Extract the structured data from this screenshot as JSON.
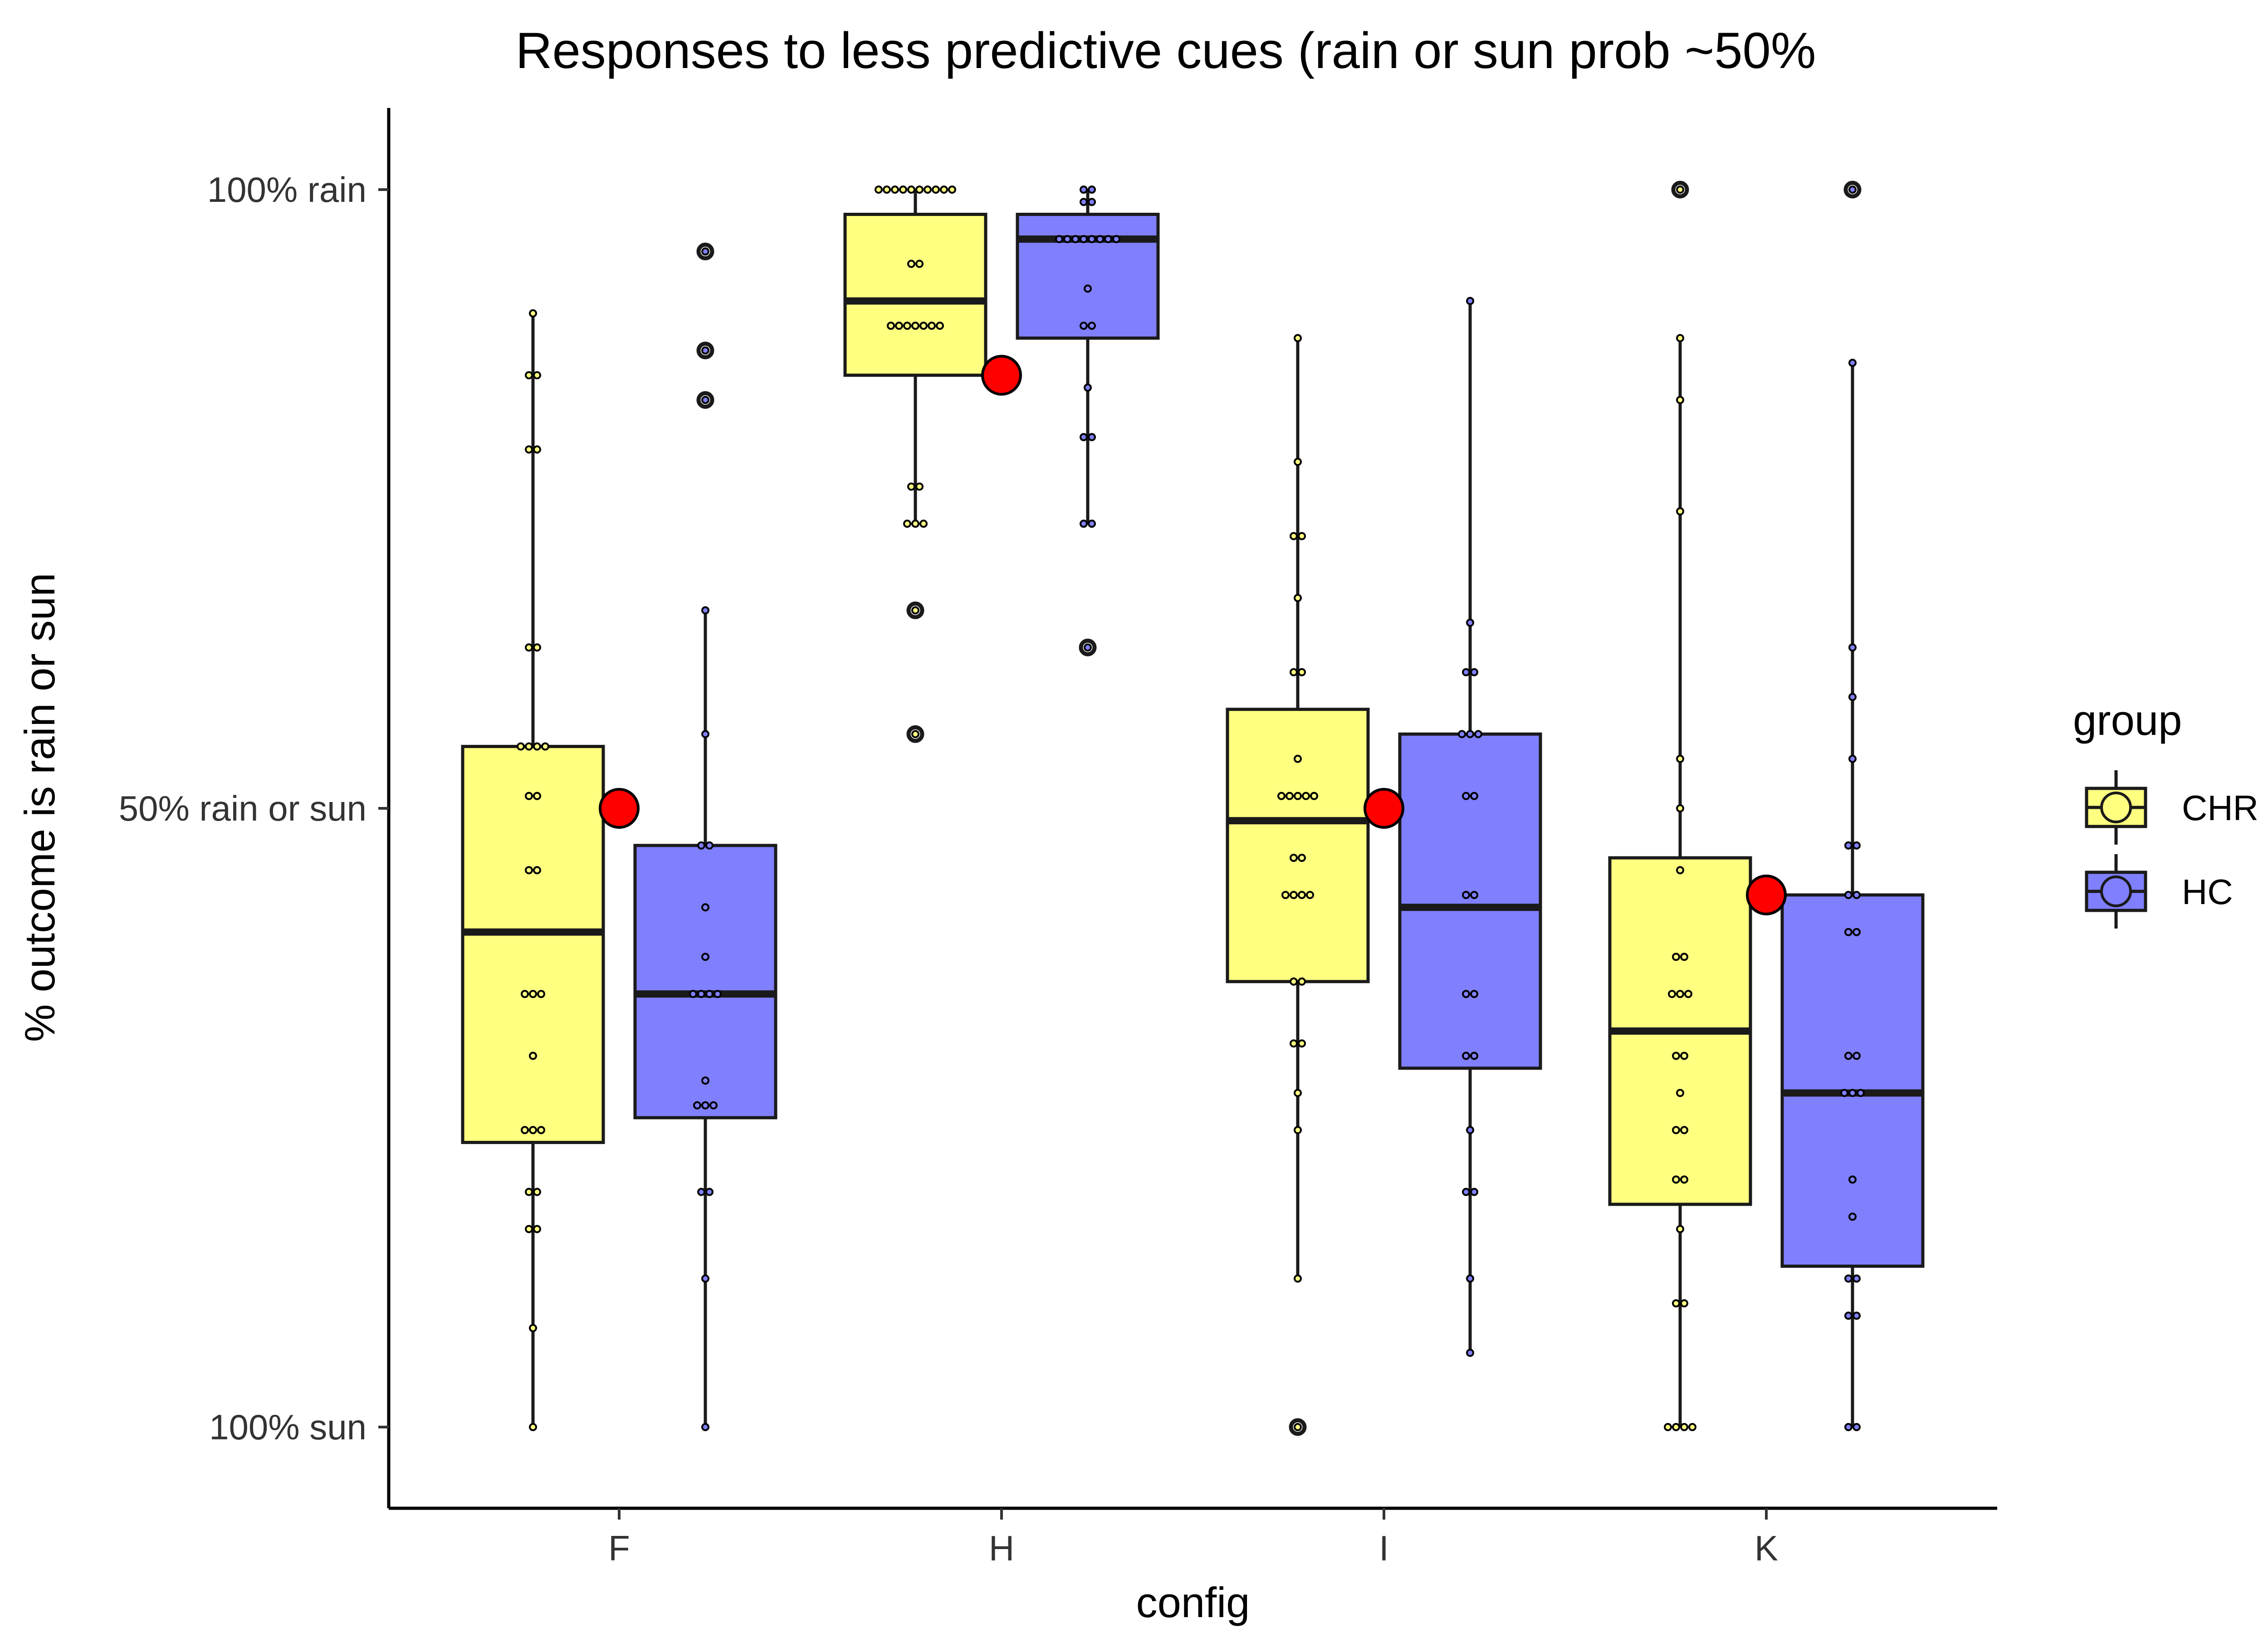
{
  "chart_data": {
    "type": "box",
    "title": "Responses to less predictive cues (rain or sun prob ~50%",
    "xlabel": "config",
    "ylabel": "% outcome is rain or sun",
    "categories": [
      "F",
      "H",
      "I",
      "K"
    ],
    "y_ticks": [
      {
        "value": 0,
        "label": "100% sun"
      },
      {
        "value": 50,
        "label": "50% rain or sun"
      },
      {
        "value": 100,
        "label": "100% rain"
      }
    ],
    "ylim": [
      -7,
      107
    ],
    "legend": {
      "title": "group",
      "position": "right",
      "entries": [
        "CHR",
        "HC"
      ]
    },
    "colors": {
      "CHR": "#ffff80",
      "HC": "#8080ff",
      "expected": "#ff0000",
      "outline": "#1a1a1a"
    },
    "series": [
      {
        "name": "CHR",
        "boxes": [
          {
            "category": "F",
            "min": 0,
            "q1": 23,
            "median": 40,
            "q3": 55,
            "max": 90,
            "outliers": [],
            "points": [
              90,
              85,
              85,
              79,
              79,
              63,
              63,
              55,
              55,
              55,
              55,
              51,
              51,
              45,
              45,
              35,
              35,
              35,
              30,
              24,
              24,
              24,
              19,
              19,
              16,
              16,
              8,
              0
            ]
          },
          {
            "category": "H",
            "min": 73,
            "q1": 85,
            "median": 91,
            "q3": 98,
            "max": 100,
            "outliers": [
              66,
              56
            ],
            "points": [
              100,
              100,
              100,
              100,
              100,
              100,
              100,
              100,
              100,
              100,
              94,
              94,
              89,
              89,
              89,
              89,
              89,
              89,
              89,
              76,
              76,
              73,
              73,
              73,
              66,
              56
            ]
          },
          {
            "category": "I",
            "min": 12,
            "q1": 36,
            "median": 49,
            "q3": 58,
            "max": 88,
            "outliers": [
              0
            ],
            "points": [
              88,
              78,
              72,
              72,
              67,
              61,
              61,
              54,
              51,
              51,
              51,
              51,
              51,
              46,
              46,
              43,
              43,
              43,
              43,
              36,
              36,
              31,
              31,
              27,
              24,
              12,
              0
            ]
          },
          {
            "category": "K",
            "min": 0,
            "q1": 18,
            "median": 32,
            "q3": 46,
            "max": 88,
            "outliers": [
              100
            ],
            "points": [
              100,
              88,
              83,
              74,
              54,
              50,
              45,
              38,
              38,
              35,
              35,
              35,
              30,
              30,
              27,
              24,
              24,
              20,
              20,
              16,
              10,
              10,
              0,
              0,
              0,
              0
            ]
          }
        ]
      },
      {
        "name": "HC",
        "boxes": [
          {
            "category": "F",
            "min": 0,
            "q1": 25,
            "median": 35,
            "q3": 47,
            "max": 66,
            "outliers": [
              95,
              87,
              83
            ],
            "points": [
              95,
              87,
              83,
              66,
              56,
              47,
              47,
              42,
              38,
              35,
              35,
              35,
              35,
              28,
              26,
              26,
              26,
              19,
              19,
              12,
              0
            ]
          },
          {
            "category": "H",
            "min": 73,
            "q1": 88,
            "median": 96,
            "q3": 98,
            "max": 100,
            "outliers": [
              63
            ],
            "points": [
              100,
              100,
              99,
              99,
              96,
              96,
              96,
              96,
              96,
              96,
              96,
              96,
              92,
              89,
              89,
              84,
              80,
              80,
              73,
              73,
              63
            ]
          },
          {
            "category": "I",
            "min": 6,
            "q1": 29,
            "median": 42,
            "q3": 56,
            "max": 91,
            "outliers": [],
            "points": [
              91,
              65,
              61,
              61,
              56,
              56,
              56,
              51,
              51,
              43,
              43,
              35,
              35,
              30,
              30,
              24,
              19,
              19,
              12,
              6
            ]
          },
          {
            "category": "K",
            "min": 0,
            "q1": 13,
            "median": 27,
            "q3": 43,
            "max": 86,
            "outliers": [
              100
            ],
            "points": [
              100,
              86,
              63,
              59,
              54,
              47,
              47,
              43,
              43,
              40,
              40,
              30,
              30,
              27,
              27,
              27,
              20,
              17,
              12,
              12,
              9,
              9,
              0,
              0
            ]
          }
        ]
      }
    ],
    "expected_points": [
      {
        "category": "F",
        "value": 50
      },
      {
        "category": "H",
        "value": 85
      },
      {
        "category": "I",
        "value": 50
      },
      {
        "category": "K",
        "value": 43
      }
    ]
  }
}
